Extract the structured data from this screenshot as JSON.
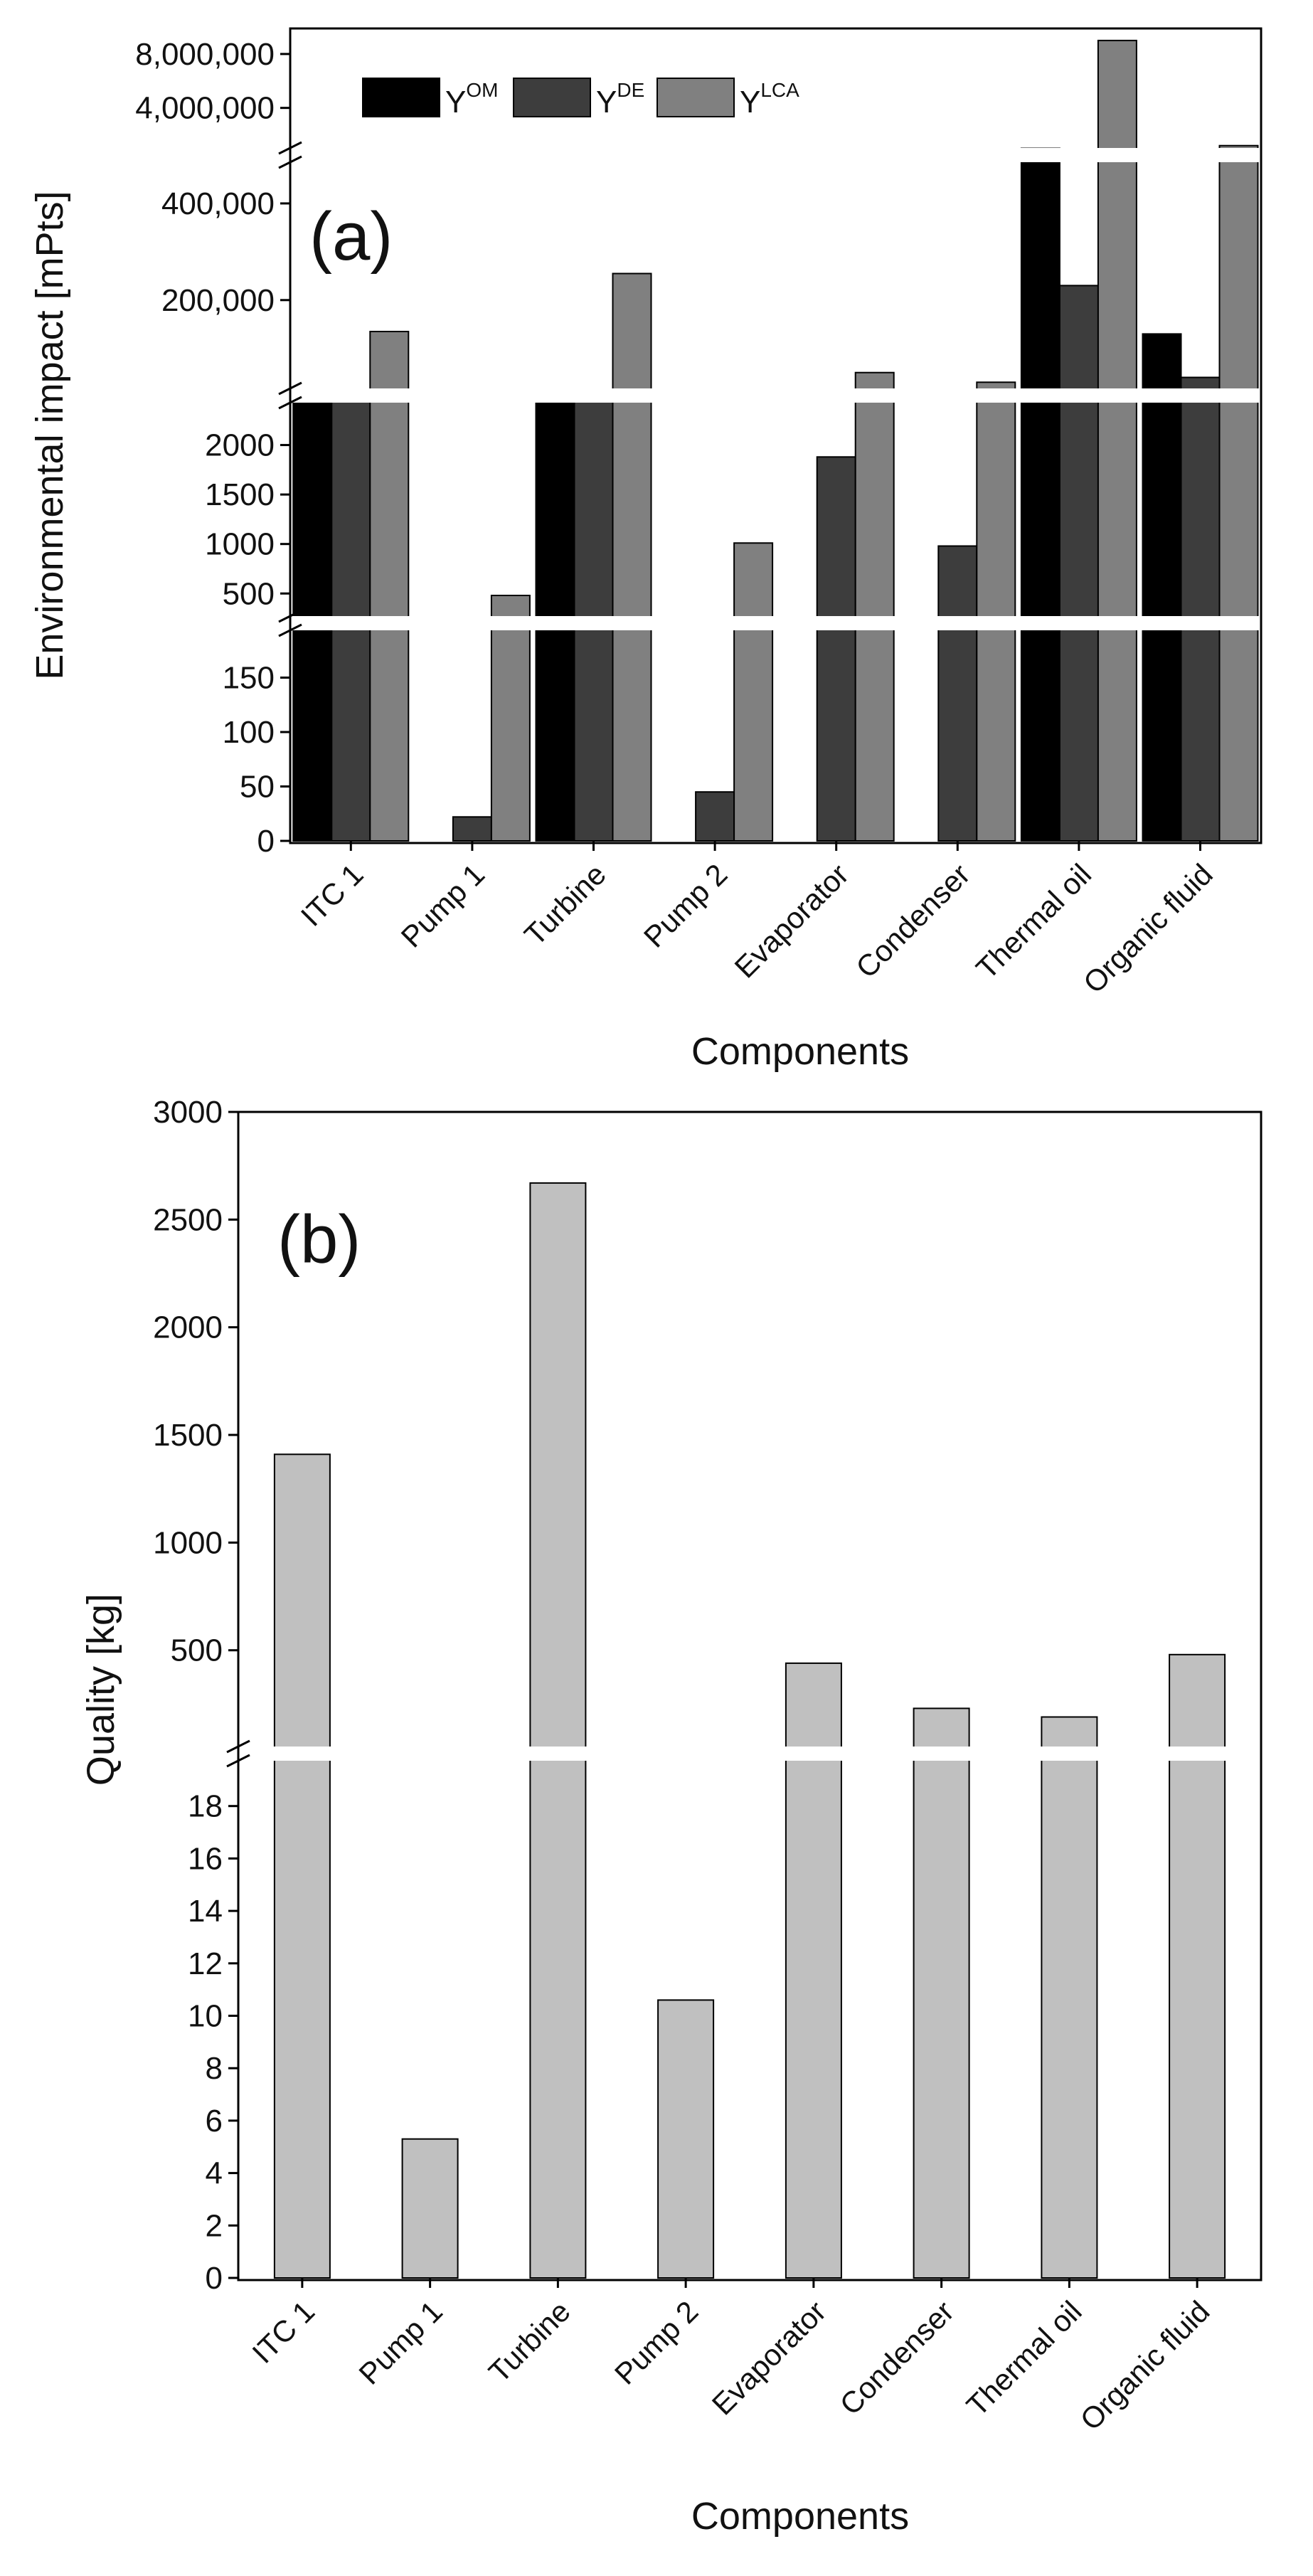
{
  "chart_data": [
    {
      "panel": "(a)",
      "type": "bar",
      "ylabel": "Environmental impact [mPts]",
      "xlabel": "Components",
      "categories": [
        "ITC 1",
        "Pump 1",
        "Turbine",
        "Pump 2",
        "Evaporator",
        "Condenser",
        "Thermal oil",
        "Organic fluid"
      ],
      "series": [
        {
          "name": "Y",
          "sup": "OM",
          "color": "#000000",
          "values": [
            6000,
            0,
            10000,
            0,
            0,
            0,
            1000000,
            130000
          ]
        },
        {
          "name": "Y",
          "sup": "DE",
          "color": "#3d3d3d",
          "values": [
            3000,
            22,
            3000,
            45,
            1880,
            980,
            230000,
            40000
          ]
        },
        {
          "name": "Y",
          "sup": "LCA",
          "color": "#808080",
          "values": [
            135000,
            480,
            255000,
            1010,
            50000,
            30000,
            9000000,
            1200000
          ]
        }
      ],
      "segments": [
        {
          "range": [
            0,
            200
          ],
          "ticks": [
            "0",
            "50",
            "100",
            "150"
          ],
          "tick_values": [
            0,
            50,
            100,
            150
          ]
        },
        {
          "range": [
            200,
            2500
          ],
          "ticks": [
            "500",
            "1000",
            "1500",
            "2000"
          ],
          "tick_values": [
            500,
            1000,
            1500,
            2000
          ]
        },
        {
          "range": [
            2500,
            500000
          ],
          "ticks": [
            "200,000",
            "400,000"
          ],
          "tick_values": [
            200000,
            400000
          ]
        },
        {
          "range": [
            500000,
            10000000
          ],
          "ticks": [
            "4,000,000",
            "8,000,000"
          ],
          "tick_values": [
            4000000,
            8000000
          ]
        }
      ],
      "legend_position": "top-left"
    },
    {
      "panel": "(b)",
      "type": "bar",
      "ylabel": "Quality [kg]",
      "xlabel": "Components",
      "categories": [
        "ITC 1",
        "Pump 1",
        "Turbine",
        "Pump 2",
        "Evaporator",
        "Condenser",
        "Thermal oil",
        "Organic fluid"
      ],
      "series": [
        {
          "name": "Quality",
          "color": "#c0c0c0",
          "values": [
            1410,
            5.3,
            2670,
            10.6,
            440,
            230,
            190,
            480
          ]
        }
      ],
      "segments": [
        {
          "range": [
            0,
            20
          ],
          "ticks": [
            "0",
            "2",
            "4",
            "6",
            "8",
            "10",
            "12",
            "14",
            "16",
            "18"
          ],
          "tick_values": [
            0,
            2,
            4,
            6,
            8,
            10,
            12,
            14,
            16,
            18
          ]
        },
        {
          "range": [
            20,
            3000
          ],
          "ticks": [
            "500",
            "1000",
            "1500",
            "2000",
            "2500",
            "3000"
          ],
          "tick_values": [
            500,
            1000,
            1500,
            2000,
            2500,
            3000
          ]
        }
      ]
    }
  ]
}
